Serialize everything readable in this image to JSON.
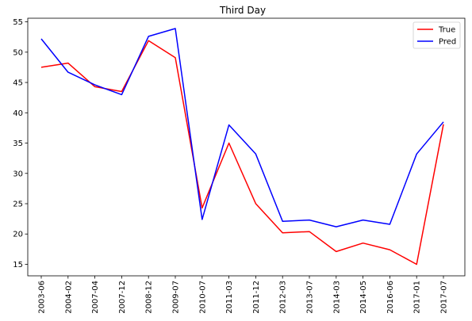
{
  "chart_data": {
    "type": "line",
    "title": "Third Day",
    "xlabel": "",
    "ylabel": "",
    "categories": [
      "2003-06",
      "2004-02",
      "2007-04",
      "2007-12",
      "2008-12",
      "2009-07",
      "2010-07",
      "2011-03",
      "2011-12",
      "2012-03",
      "2013-07",
      "2014-03",
      "2014-05",
      "2016-06",
      "2017-01",
      "2017-07"
    ],
    "ylim": [
      13.1,
      55.6
    ],
    "yticks": [
      15,
      20,
      25,
      30,
      35,
      40,
      45,
      50,
      55
    ],
    "grid": false,
    "legend_position": "top-right",
    "series": [
      {
        "name": "True",
        "color": "#ff0000",
        "values": [
          47.5,
          48.2,
          44.3,
          43.5,
          51.9,
          49.1,
          24.3,
          35.0,
          25.0,
          20.2,
          20.4,
          17.1,
          18.5,
          17.4,
          15.0,
          38.1
        ]
      },
      {
        "name": "Pred",
        "color": "#0000ff",
        "values": [
          52.2,
          46.7,
          44.6,
          43.0,
          52.6,
          53.9,
          22.4,
          38.0,
          33.2,
          22.1,
          22.3,
          21.2,
          22.3,
          21.6,
          33.2,
          38.5
        ]
      }
    ]
  }
}
